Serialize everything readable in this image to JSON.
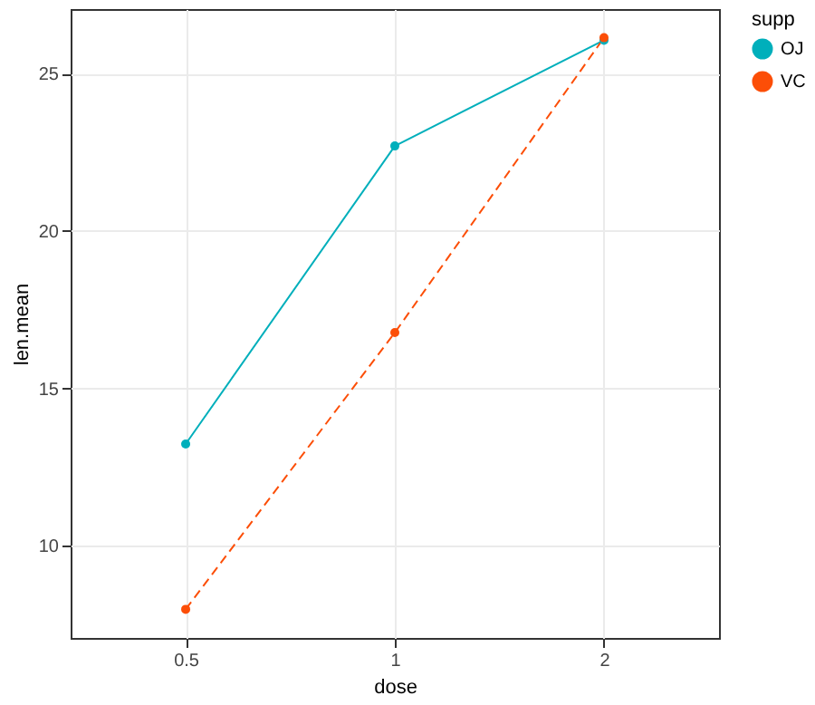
{
  "chart_data": {
    "type": "line",
    "xlabel": "dose",
    "ylabel": "len.mean",
    "legend_title": "supp",
    "categories": [
      "0.5",
      "1",
      "2"
    ],
    "series": [
      {
        "name": "OJ",
        "color": "#00afbb",
        "values": [
          13.23,
          22.7,
          26.06
        ],
        "line_style": "solid"
      },
      {
        "name": "VC",
        "color": "#fc4e07",
        "values": [
          7.98,
          16.77,
          26.14
        ],
        "line_style": "dashed"
      }
    ],
    "ylim": [
      7.07,
      27.05
    ],
    "yticks": [
      10,
      15,
      20,
      25
    ],
    "grid": true,
    "legend": "right",
    "marker": "circle"
  }
}
